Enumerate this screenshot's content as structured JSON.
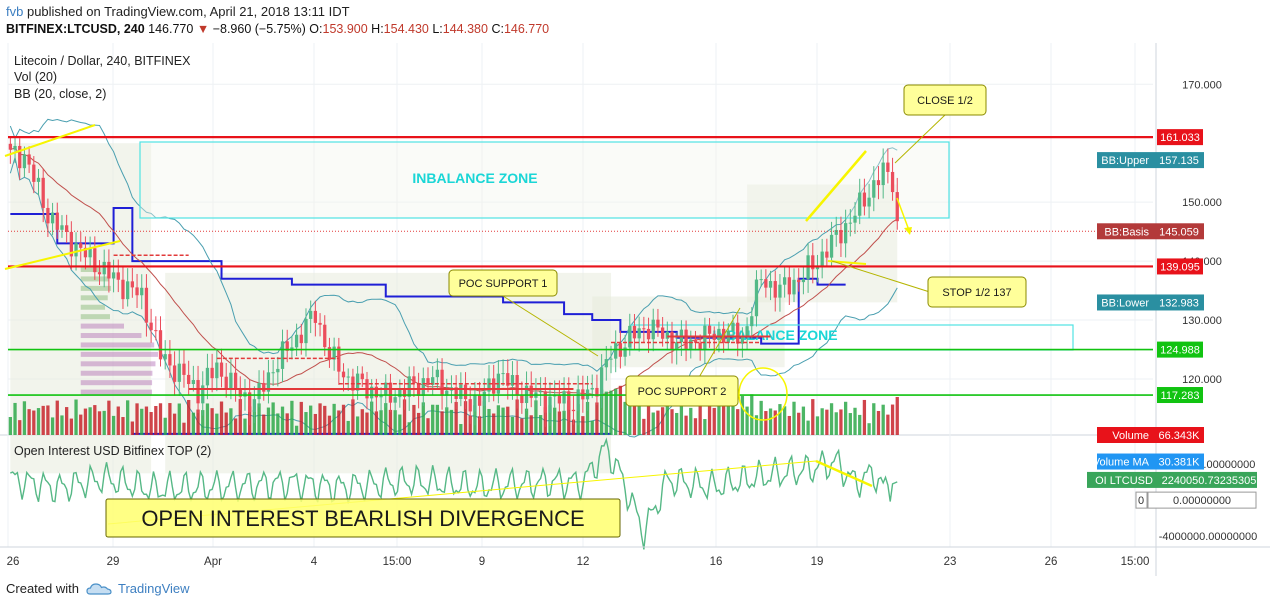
{
  "header": {
    "user": "fvb",
    "published": "published on TradingView.com, April 21, 2018 13:11 IDT",
    "symbol": "BITFINEX:LTCUSD, 240",
    "last": "146.770",
    "change": "−8.960 (−5.75%)",
    "o_label": "O:",
    "o_val": "153.900",
    "h_label": "H:",
    "h_val": "154.430",
    "l_label": "L:",
    "l_val": "144.380",
    "c_label": "C:",
    "c_val": "146.770"
  },
  "legend": {
    "title": "Litecoin / Dollar, 240, BITFINEX",
    "vol": "Vol (20)",
    "bb": "BB (20, close, 2)",
    "oi": "Open Interest USD Bitfinex TOP (2)"
  },
  "colors": {
    "bg": "#ffffff",
    "grid": "#eef1f4",
    "up": "#53b987",
    "down": "#eb4d5c",
    "bb": "#4a9fb0",
    "basis": "#c0504d",
    "poc": "#1f1fd6",
    "red_line": "#e8121a",
    "green_line": "#11c311",
    "cyan_box": "#4fe3e3",
    "yellow": "#f7f500",
    "note_bg": "#ffff9a",
    "note_border": "#8a8a00",
    "oi_line": "#56b886"
  },
  "chart_data": {
    "type": "candlestick",
    "price_axis": {
      "ticks": [
        "170.000",
        "150.000",
        "140.000",
        "130.000",
        "120.000"
      ],
      "ylim": [
        110.5,
        177
      ]
    },
    "time_axis": {
      "ticks": [
        "26",
        "29",
        "Apr",
        "4",
        "15:00",
        "9",
        "12",
        "16",
        "19",
        "23",
        "26",
        "15:00"
      ]
    },
    "price_path": [
      [
        0,
        158
      ],
      [
        3,
        158
      ],
      [
        8,
        148
      ],
      [
        12,
        144
      ],
      [
        16,
        141
      ],
      [
        22,
        137
      ],
      [
        28,
        134
      ],
      [
        32,
        124
      ],
      [
        36,
        121
      ],
      [
        40,
        118
      ],
      [
        44,
        122
      ],
      [
        48,
        118
      ],
      [
        52,
        116
      ],
      [
        56,
        122
      ],
      [
        60,
        126
      ],
      [
        65,
        131
      ],
      [
        68,
        124
      ],
      [
        72,
        120
      ],
      [
        80,
        117
      ],
      [
        90,
        120
      ],
      [
        96,
        117
      ],
      [
        100,
        116
      ],
      [
        104,
        121
      ],
      [
        108,
        118
      ],
      [
        112,
        117
      ],
      [
        120,
        116
      ],
      [
        124,
        118
      ],
      [
        128,
        124
      ],
      [
        132,
        127
      ],
      [
        136,
        129
      ],
      [
        140,
        127
      ],
      [
        144,
        126
      ],
      [
        148,
        127
      ],
      [
        152,
        128
      ],
      [
        156,
        127
      ],
      [
        158,
        132
      ],
      [
        160,
        137
      ],
      [
        164,
        135
      ],
      [
        168,
        137
      ],
      [
        172,
        140
      ],
      [
        176,
        144
      ],
      [
        180,
        148
      ],
      [
        184,
        153
      ],
      [
        186,
        155
      ],
      [
        188,
        153.9
      ],
      [
        189,
        146.77
      ]
    ],
    "volume_ma": 30.381,
    "oi_path": [
      [
        0,
        2300000.0
      ],
      [
        10,
        1300000.0
      ],
      [
        20,
        2400000.0
      ],
      [
        30,
        1200000.0
      ],
      [
        45,
        1500000.0
      ],
      [
        60,
        1900000.0
      ],
      [
        70,
        1400000.0
      ],
      [
        85,
        2100000.0
      ],
      [
        100,
        1500000.0
      ],
      [
        115,
        2000000.0
      ],
      [
        122,
        1900000.0
      ],
      [
        127,
        5800000.0
      ],
      [
        130,
        2800000.0
      ],
      [
        135,
        -3600000.0
      ],
      [
        140,
        2200000.0
      ],
      [
        150,
        1500000.0
      ],
      [
        160,
        2600000.0
      ],
      [
        170,
        3400000.0
      ],
      [
        176,
        4200000.0
      ],
      [
        180,
        1900000.0
      ],
      [
        184,
        3000000.0
      ],
      [
        186,
        1300000.0
      ],
      [
        188,
        1800000.0
      ],
      [
        190,
        2240000.0
      ]
    ],
    "oi_axis": {
      "ticks": [
        "4000000.00000000",
        "-4000000.00000000"
      ],
      "ylim": [
        -5200000.0,
        7000000.0
      ]
    }
  },
  "horizontal_levels": [
    {
      "label": "161.033",
      "value": 161.033,
      "color": "#e8121a"
    },
    {
      "label": "139.095",
      "value": 139.095,
      "color": "#e8121a"
    },
    {
      "label": "124.988",
      "value": 124.988,
      "color": "#11c311"
    },
    {
      "label": "117.283",
      "value": 117.283,
      "color": "#11c311"
    }
  ],
  "axis_labels": [
    {
      "label": "BB:Upper",
      "value": "157.135",
      "price": 157.135,
      "color": "#2a8fa1"
    },
    {
      "label": "BB:Basis",
      "value": "145.059",
      "price": 145.059,
      "color": "#b33a3a"
    },
    {
      "label": "BB:Lower",
      "value": "132.983",
      "price": 132.983,
      "color": "#2a8fa1"
    },
    {
      "label": "Volume",
      "value": "66.343K",
      "price": 110.5,
      "color": "#e8121a"
    },
    {
      "label": "Volume MA",
      "value": "30.381K",
      "price": 106,
      "color": "#2196f3"
    },
    {
      "label": "OI LTCUSD",
      "value": "2240050.73235305",
      "color": "#39a55a"
    },
    {
      "label": "",
      "value": "0.00000000",
      "color": "#ffffff"
    }
  ],
  "annotations": {
    "imbalance_top": "INBALANCE ZONE",
    "imbalance_bottom": "INBALANCE ZONE",
    "poc1": "POC SUPPORT 1",
    "poc2": "POC SUPPORT 2",
    "close_half": "CLOSE 1/2",
    "stop_half": "STOP 1/2 137",
    "divergence": "OPEN INTEREST BEARLISH DIVERGENCE"
  },
  "footer": {
    "created_with": "Created with",
    "brand": "TradingView"
  }
}
